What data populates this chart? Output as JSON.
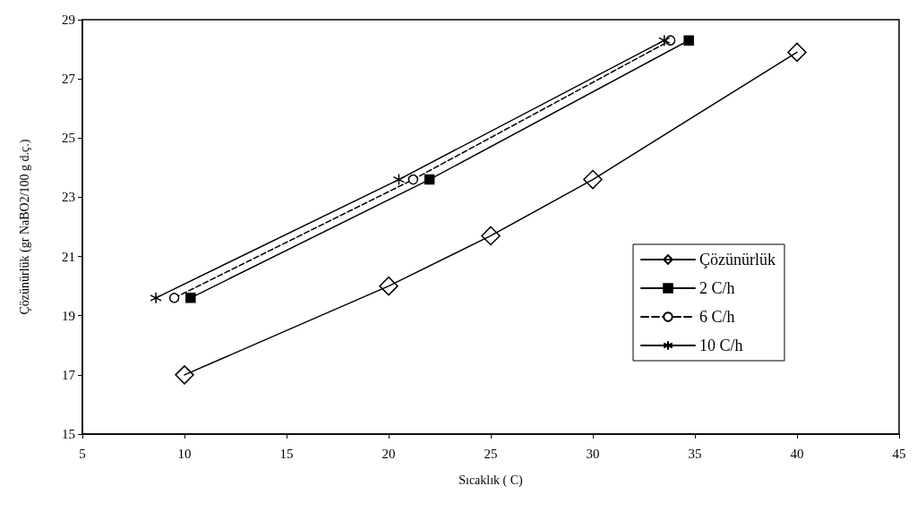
{
  "chart_data": {
    "type": "line",
    "xlabel": "Sıcaklık ( C)",
    "ylabel": "Çözünürlük (gr NaBO2/100 g d.ç.)",
    "xlim": [
      5,
      45
    ],
    "xticks": [
      5,
      10,
      15,
      20,
      25,
      30,
      35,
      40,
      45
    ],
    "ylim": [
      15,
      29
    ],
    "yticks": [
      15,
      17,
      19,
      21,
      23,
      25,
      27,
      29
    ],
    "grid": false,
    "legend": "right",
    "series": [
      {
        "name": "Çözünürlük",
        "color": "#000000",
        "marker": "diamond",
        "line_style": "solid",
        "x": [
          10,
          20,
          25,
          30,
          40
        ],
        "values": [
          17.0,
          20.0,
          21.7,
          23.6,
          27.9
        ]
      },
      {
        "name": "2 C/h",
        "color": "#000000",
        "marker": "square",
        "line_style": "solid",
        "x": [
          10.3,
          22.0,
          34.7
        ],
        "values": [
          19.6,
          23.6,
          28.3
        ]
      },
      {
        "name": "6 C/h",
        "color": "#000000",
        "marker": "circle",
        "line_style": "dashed",
        "x": [
          9.5,
          21.2,
          33.8
        ],
        "values": [
          19.6,
          23.6,
          28.3
        ]
      },
      {
        "name": "10 C/h",
        "color": "#000000",
        "marker": "cross",
        "line_style": "solid",
        "x": [
          8.6,
          20.5,
          33.5
        ],
        "values": [
          19.6,
          23.6,
          28.3
        ]
      }
    ]
  }
}
